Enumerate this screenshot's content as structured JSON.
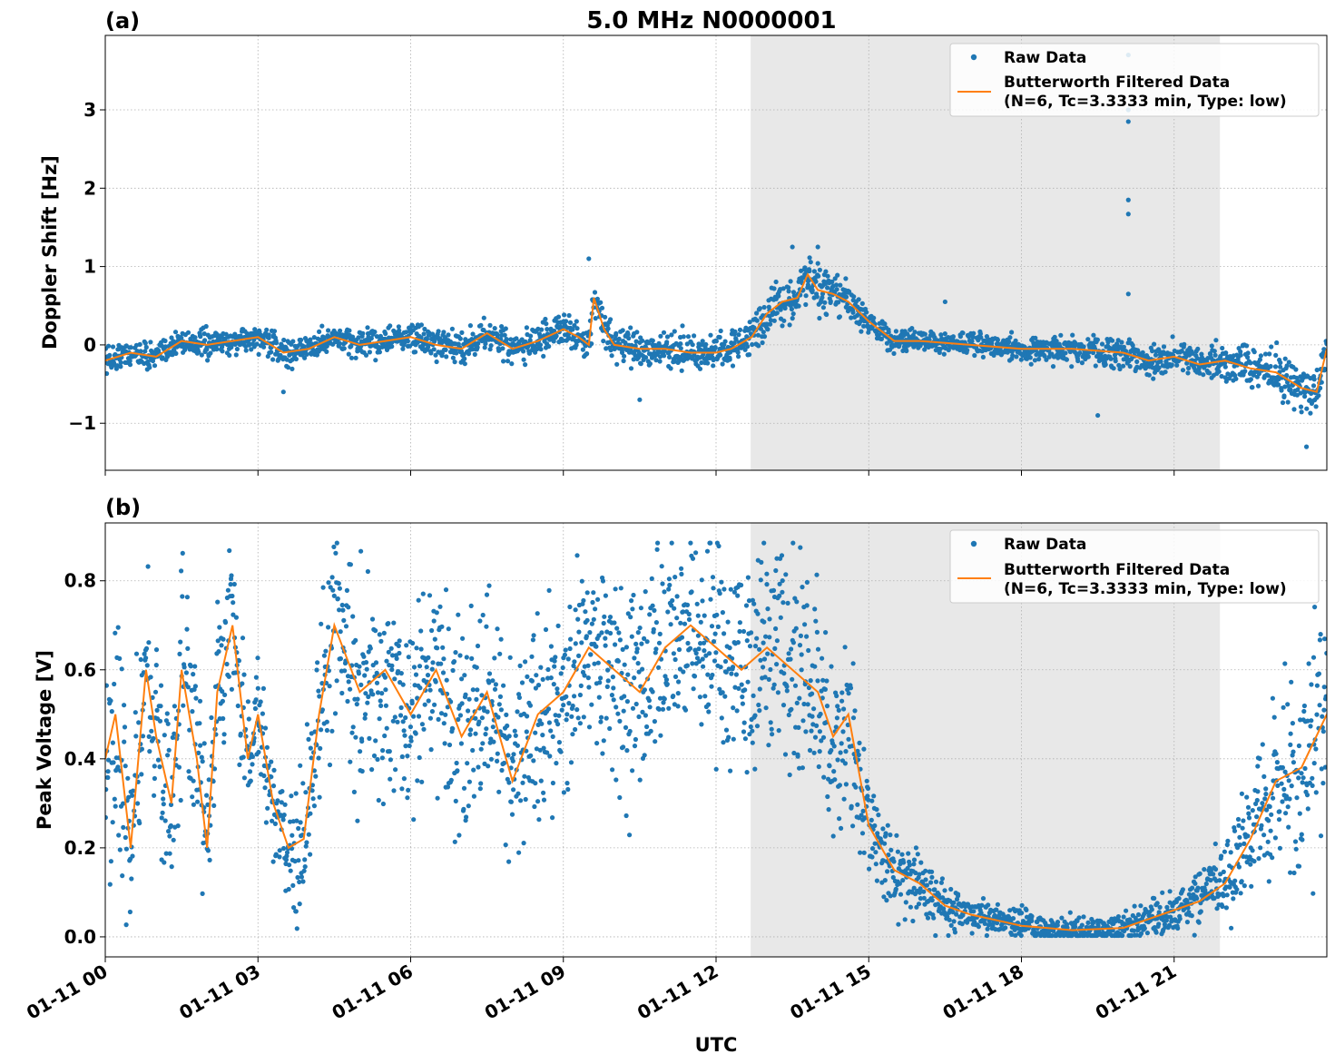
{
  "figure": {
    "title": "5.0 MHz N0000001",
    "xlabel": "UTC",
    "colors": {
      "raw": "#1f77b4",
      "filtered": "#ff7f0e",
      "shade": "#e8e8e8",
      "grid": "#b0b0b0"
    }
  },
  "chart_data": [
    {
      "type": "scatter",
      "panel_label": "(a)",
      "ylabel": "Doppler Shift [Hz]",
      "xlim": [
        0,
        24
      ],
      "ylim": [
        -1.6,
        3.95
      ],
      "yticks": [
        -1,
        0,
        1,
        2,
        3
      ],
      "ytick_labels": [
        "−1",
        "0",
        "1",
        "2",
        "3"
      ],
      "grid": true,
      "legend_position": "top-right",
      "legend": [
        "Raw Data",
        "Butterworth Filtered Data",
        "(N=6, Tc=3.3333 min, Type: low)"
      ],
      "shaded_interval_hours": [
        12.68,
        21.9
      ],
      "filtered_series": {
        "name": "Butterworth Filtered Data",
        "x": [
          0,
          0.5,
          1,
          1.5,
          2,
          2.5,
          3,
          3.5,
          4,
          4.5,
          5,
          5.5,
          6,
          6.5,
          7,
          7.5,
          8,
          8.5,
          9,
          9.3,
          9.5,
          9.6,
          9.8,
          10,
          10.5,
          11,
          11.5,
          12,
          12.3,
          12.7,
          13,
          13.3,
          13.6,
          13.8,
          14,
          14.3,
          14.6,
          15,
          15.5,
          16,
          17,
          18,
          19,
          20,
          20.5,
          21,
          21.5,
          22,
          22.5,
          23,
          23.5,
          23.8,
          24
        ],
        "y": [
          -0.2,
          -0.1,
          -0.15,
          0.05,
          0.0,
          0.05,
          0.1,
          -0.1,
          -0.05,
          0.1,
          0.0,
          0.05,
          0.1,
          0.0,
          -0.05,
          0.15,
          -0.05,
          0.05,
          0.2,
          0.1,
          0.0,
          0.6,
          0.2,
          0.0,
          -0.05,
          -0.05,
          -0.1,
          -0.1,
          -0.05,
          0.1,
          0.4,
          0.55,
          0.6,
          0.9,
          0.7,
          0.65,
          0.55,
          0.3,
          0.05,
          0.05,
          0.0,
          -0.05,
          -0.05,
          -0.1,
          -0.2,
          -0.15,
          -0.25,
          -0.2,
          -0.3,
          -0.35,
          -0.55,
          -0.6,
          -0.05
        ]
      },
      "raw_series": {
        "name": "Raw Data",
        "spread_hz": [
          [
            0,
            0.18
          ],
          [
            3,
            0.18
          ],
          [
            9,
            0.2
          ],
          [
            12.5,
            0.25
          ],
          [
            13.2,
            0.3
          ],
          [
            14.5,
            0.3
          ],
          [
            15,
            0.15
          ],
          [
            18,
            0.15
          ],
          [
            20,
            0.2
          ],
          [
            22,
            0.25
          ],
          [
            24,
            0.35
          ]
        ],
        "outliers": [
          {
            "x": 20.1,
            "y": 3.7
          },
          {
            "x": 20.1,
            "y": 3.0
          },
          {
            "x": 20.1,
            "y": 2.85
          },
          {
            "x": 20.1,
            "y": 1.85
          },
          {
            "x": 20.1,
            "y": 1.67
          },
          {
            "x": 20.1,
            "y": 0.65
          },
          {
            "x": 9.5,
            "y": 1.1
          },
          {
            "x": 13.5,
            "y": 1.25
          },
          {
            "x": 14.0,
            "y": 1.25
          },
          {
            "x": 16.5,
            "y": 0.55
          },
          {
            "x": 19.5,
            "y": -0.9
          },
          {
            "x": 23.6,
            "y": -1.3
          },
          {
            "x": 10.5,
            "y": -0.7
          },
          {
            "x": 3.5,
            "y": -0.6
          }
        ]
      }
    },
    {
      "type": "scatter",
      "panel_label": "(b)",
      "ylabel": "Peak Voltage [V]",
      "xlim": [
        0,
        24
      ],
      "ylim": [
        -0.045,
        0.93
      ],
      "yticks": [
        0.0,
        0.2,
        0.4,
        0.6,
        0.8
      ],
      "ytick_labels": [
        "0.0",
        "0.2",
        "0.4",
        "0.6",
        "0.8"
      ],
      "grid": true,
      "legend_position": "top-right",
      "legend": [
        "Raw Data",
        "Butterworth Filtered Data",
        "(N=6, Tc=3.3333 min, Type: low)"
      ],
      "shaded_interval_hours": [
        12.68,
        21.9
      ],
      "filtered_series": {
        "name": "Butterworth Filtered Data",
        "x": [
          0,
          0.2,
          0.5,
          0.8,
          1,
          1.3,
          1.5,
          1.8,
          2,
          2.2,
          2.5,
          2.8,
          3,
          3.3,
          3.6,
          3.9,
          4.2,
          4.5,
          5,
          5.5,
          6,
          6.5,
          7,
          7.5,
          8,
          8.5,
          9,
          9.5,
          10,
          10.5,
          11,
          11.5,
          12,
          12.5,
          13,
          13.5,
          14,
          14.3,
          14.6,
          15,
          15.5,
          16,
          16.5,
          17,
          18,
          19,
          20,
          20.5,
          21,
          21.5,
          22,
          22.5,
          23,
          23.5,
          24
        ],
        "y": [
          0.4,
          0.5,
          0.2,
          0.6,
          0.45,
          0.3,
          0.6,
          0.4,
          0.2,
          0.55,
          0.7,
          0.4,
          0.5,
          0.3,
          0.2,
          0.22,
          0.5,
          0.7,
          0.55,
          0.6,
          0.5,
          0.6,
          0.45,
          0.55,
          0.35,
          0.5,
          0.55,
          0.65,
          0.6,
          0.55,
          0.65,
          0.7,
          0.65,
          0.6,
          0.65,
          0.6,
          0.55,
          0.45,
          0.5,
          0.25,
          0.15,
          0.12,
          0.07,
          0.05,
          0.025,
          0.015,
          0.02,
          0.04,
          0.06,
          0.08,
          0.12,
          0.22,
          0.35,
          0.38,
          0.5
        ]
      },
      "raw_series": {
        "name": "Raw Data",
        "spread_v": [
          [
            0,
            0.3
          ],
          [
            3.5,
            0.12
          ],
          [
            4,
            0.25
          ],
          [
            12,
            0.25
          ],
          [
            14.5,
            0.25
          ],
          [
            15,
            0.12
          ],
          [
            16,
            0.08
          ],
          [
            17,
            0.04
          ],
          [
            20,
            0.03
          ],
          [
            21,
            0.05
          ],
          [
            22,
            0.1
          ],
          [
            23,
            0.2
          ],
          [
            24,
            0.3
          ]
        ]
      }
    }
  ]
}
